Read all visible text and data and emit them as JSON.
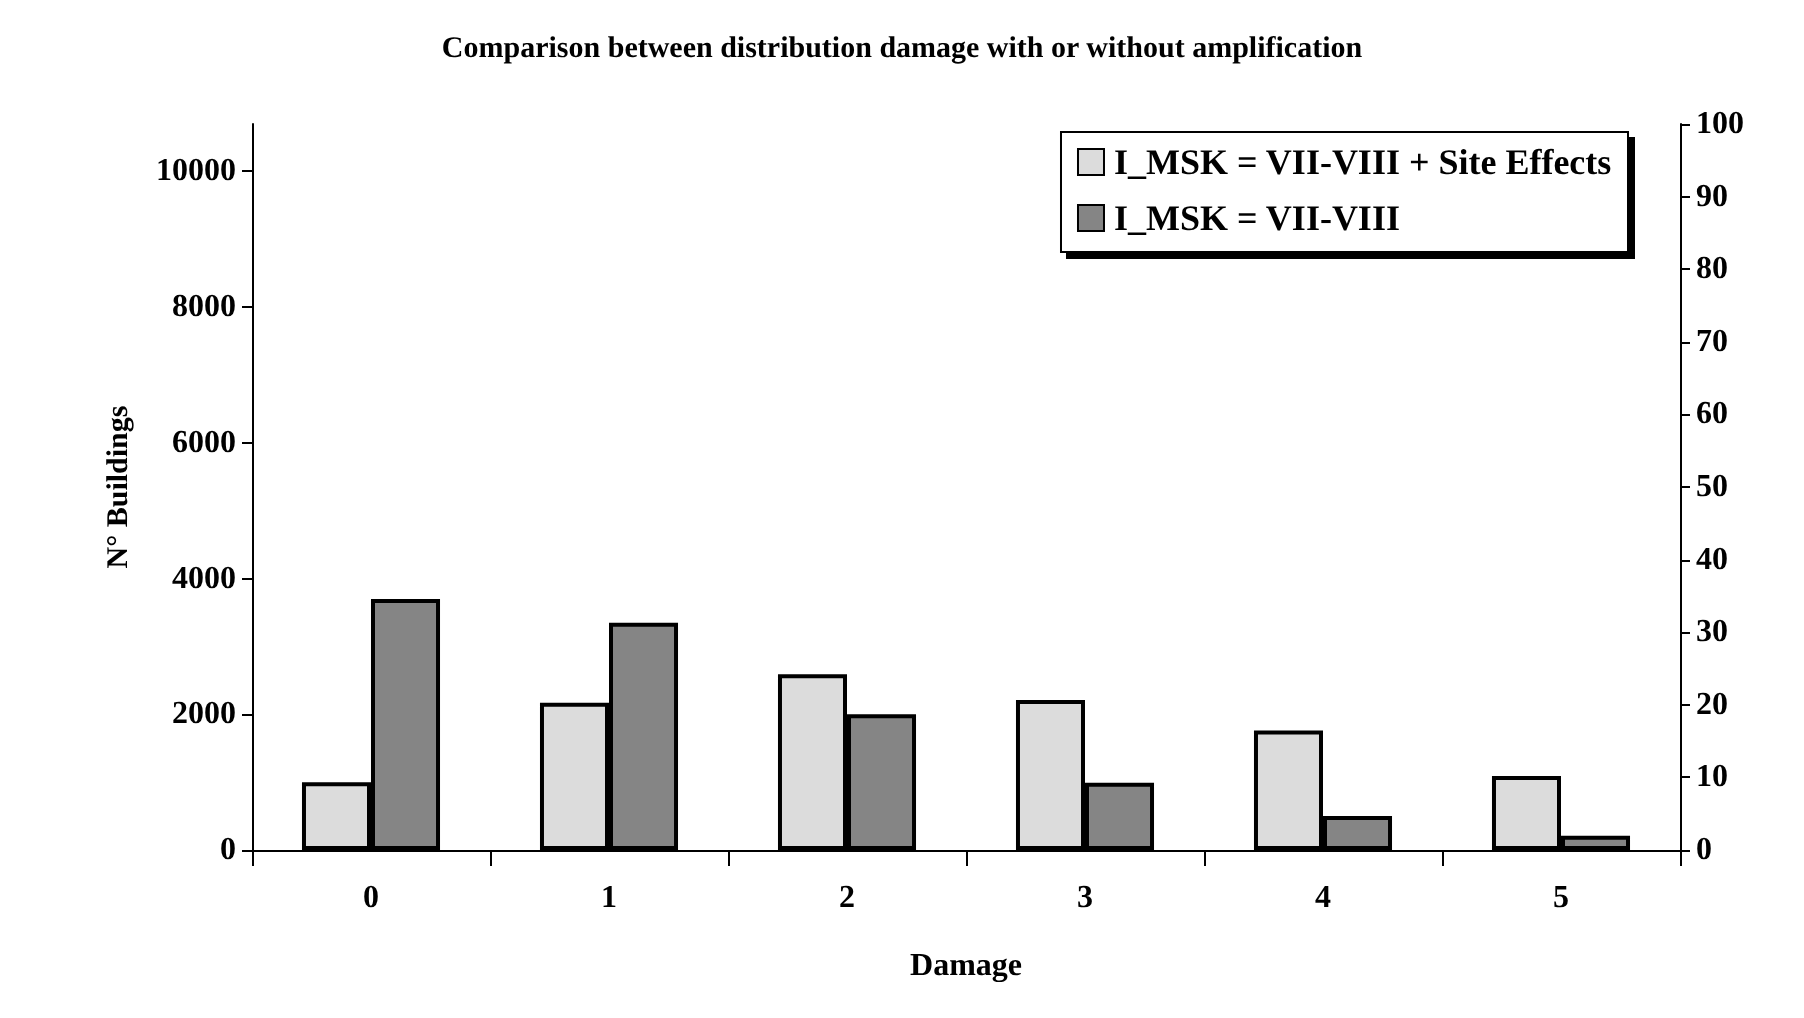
{
  "chart_data": {
    "type": "bar",
    "title": "Comparison between distribution damage with or without amplification",
    "xlabel": "Damage",
    "ylabel": "N° Buildings",
    "categories": [
      "0",
      "1",
      "2",
      "3",
      "4",
      "5"
    ],
    "series": [
      {
        "name": "I_MSK = VII-VIII + Site Effects",
        "color": "#dcdcdc",
        "values": [
          1000,
          2170,
          2590,
          2210,
          1760,
          1090
        ]
      },
      {
        "name": "I_MSK = VII-VIII",
        "color": "#858585",
        "values": [
          3700,
          3350,
          2000,
          990,
          500,
          210
        ]
      }
    ],
    "ylim": [
      0,
      10700
    ],
    "yticks": [
      0,
      2000,
      4000,
      6000,
      8000,
      10000
    ],
    "y2lim": [
      0,
      100
    ],
    "y2ticks": [
      0,
      10,
      20,
      30,
      40,
      50,
      60,
      70,
      80,
      90,
      100
    ],
    "grid": false,
    "legend": "top right"
  }
}
